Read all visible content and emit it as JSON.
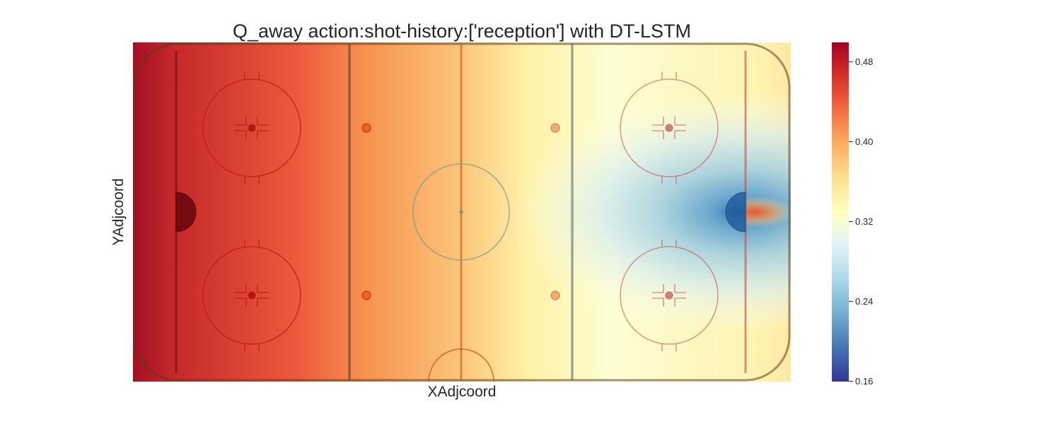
{
  "chart_data": {
    "type": "heatmap",
    "title": "Q_away action:shot-history:['reception'] with DT-LSTM",
    "xlabel": "XAdjcoord",
    "ylabel": "YAdjcoord",
    "colorbar": {
      "min": 0.16,
      "max": 0.5,
      "ticks": [
        0.48,
        0.4,
        0.32,
        0.24,
        0.16
      ],
      "tick_labels": [
        "0.48",
        "0.40",
        "0.32",
        "0.24",
        "0.16"
      ],
      "colormap": "RdYlBu_r",
      "colors": [
        "#313695",
        "#4575b4",
        "#74add1",
        "#abd9e9",
        "#e0f3f8",
        "#ffffbf",
        "#fee090",
        "#fdae61",
        "#f46d43",
        "#d73027",
        "#a50026"
      ]
    },
    "value_description": "Q value increases toward the left end of the rink (~0.50) and decreases toward the right net (~0.20), with a sharp spike near the right goal",
    "sampled_values": {
      "x_positions": [
        "left boards",
        "left goal line",
        "left blue line",
        "center red line",
        "right blue line",
        "right goal line",
        "right boards"
      ],
      "center_row": [
        0.49,
        0.48,
        0.43,
        0.38,
        0.28,
        0.2,
        0.44
      ],
      "edge_row": [
        0.49,
        0.47,
        0.44,
        0.39,
        0.34,
        0.31,
        0.36
      ]
    },
    "grid": false,
    "background": "ice hockey rink overlay"
  }
}
